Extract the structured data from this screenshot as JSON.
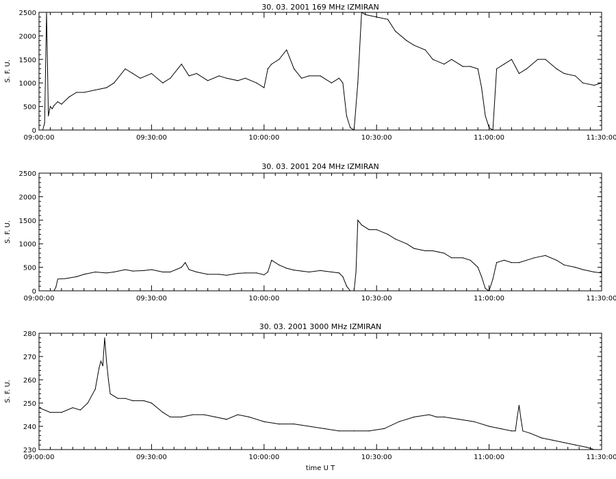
{
  "chart_data": [
    {
      "type": "line",
      "title": "30.  03.  2001    169 MHz    IZMIRAN",
      "ylabel": "S. F. U.",
      "xlabel": "",
      "xlim": [
        "09:00:00",
        "11:30:00"
      ],
      "ylim": [
        0,
        2500
      ],
      "grid": false,
      "x_ticks": [
        "09:00:00",
        "09:30:00",
        "10:00:00",
        "10:30:00",
        "11:00:00",
        "11:30:00"
      ],
      "y_ticks": [
        "0",
        "500",
        "1000",
        "1500",
        "2000",
        "2500"
      ],
      "series": [
        {
          "x": [
            "09:00:00",
            "09:01:00",
            "09:01:30",
            "09:02:00",
            "09:02:30",
            "09:03:00",
            "09:03:30",
            "09:04:00",
            "09:05:00",
            "09:06:00",
            "09:08:00",
            "09:10:00",
            "09:12:00",
            "09:15:00",
            "09:18:00",
            "09:20:00",
            "09:23:00",
            "09:25:00",
            "09:27:00",
            "09:30:00",
            "09:33:00",
            "09:35:00",
            "09:38:00",
            "09:40:00",
            "09:42:00",
            "09:45:00",
            "09:48:00",
            "09:50:00",
            "09:53:00",
            "09:55:00",
            "09:58:00",
            "10:00:00",
            "10:01:00",
            "10:02:00",
            "10:04:00",
            "10:06:00",
            "10:08:00",
            "10:10:00",
            "10:12:00",
            "10:15:00",
            "10:18:00",
            "10:20:00",
            "10:21:00",
            "10:22:00",
            "10:23:00",
            "10:24:00",
            "10:25:00",
            "10:26:00",
            "10:27:00",
            "10:30:00",
            "10:33:00",
            "10:35:00",
            "10:38:00",
            "10:40:00",
            "10:43:00",
            "10:45:00",
            "10:48:00",
            "10:50:00",
            "10:53:00",
            "10:55:00",
            "10:57:00",
            "10:58:00",
            "10:59:00",
            "11:00:00",
            "11:01:00",
            "11:02:00",
            "11:04:00",
            "11:06:00",
            "11:08:00",
            "11:10:00",
            "11:13:00",
            "11:15:00",
            "11:18:00",
            "11:20:00",
            "11:23:00",
            "11:25:00",
            "11:28:00",
            "11:30:00"
          ],
          "values": [
            0,
            0,
            150,
            2500,
            300,
            500,
            450,
            520,
            600,
            550,
            700,
            800,
            800,
            850,
            900,
            1000,
            1300,
            1200,
            1100,
            1200,
            1000,
            1100,
            1400,
            1150,
            1200,
            1050,
            1150,
            1100,
            1050,
            1100,
            1000,
            900,
            1300,
            1400,
            1500,
            1700,
            1300,
            1100,
            1150,
            1150,
            1000,
            1100,
            1000,
            300,
            50,
            0,
            1000,
            2500,
            2450,
            2400,
            2350,
            2100,
            1900,
            1800,
            1700,
            1500,
            1400,
            1500,
            1350,
            1350,
            1300,
            900,
            300,
            50,
            0,
            1300,
            1400,
            1500,
            1200,
            1300,
            1500,
            1500,
            1300,
            1200,
            1150,
            1000,
            950,
            1000
          ]
        }
      ]
    },
    {
      "type": "line",
      "title": "30.  03.  2001    204 MHz    IZMIRAN",
      "ylabel": "S. F. U.",
      "xlabel": "",
      "xlim": [
        "09:00:00",
        "11:30:00"
      ],
      "ylim": [
        0,
        2500
      ],
      "grid": false,
      "x_ticks": [
        "09:00:00",
        "09:30:00",
        "10:00:00",
        "10:30:00",
        "11:00:00",
        "11:30:00"
      ],
      "y_ticks": [
        "0",
        "500",
        "1000",
        "1500",
        "2000",
        "2500"
      ],
      "series": [
        {
          "x": [
            "09:00:00",
            "09:02:00",
            "09:04:00",
            "09:04:30",
            "09:05:00",
            "09:07:00",
            "09:10:00",
            "09:12:00",
            "09:15:00",
            "09:18:00",
            "09:20:00",
            "09:23:00",
            "09:25:00",
            "09:28:00",
            "09:30:00",
            "09:33:00",
            "09:35:00",
            "09:38:00",
            "09:39:00",
            "09:40:00",
            "09:42:00",
            "09:45:00",
            "09:48:00",
            "09:50:00",
            "09:53:00",
            "09:55:00",
            "09:58:00",
            "10:00:00",
            "10:01:00",
            "10:02:00",
            "10:04:00",
            "10:06:00",
            "10:08:00",
            "10:10:00",
            "10:12:00",
            "10:15:00",
            "10:18:00",
            "10:20:00",
            "10:21:00",
            "10:22:00",
            "10:23:00",
            "10:24:00",
            "10:24:30",
            "10:25:00",
            "10:26:00",
            "10:28:00",
            "10:30:00",
            "10:33:00",
            "10:35:00",
            "10:38:00",
            "10:40:00",
            "10:43:00",
            "10:45:00",
            "10:48:00",
            "10:50:00",
            "10:53:00",
            "10:55:00",
            "10:57:00",
            "10:58:00",
            "10:59:00",
            "11:00:00",
            "11:01:00",
            "11:02:00",
            "11:04:00",
            "11:06:00",
            "11:08:00",
            "11:10:00",
            "11:12:00",
            "11:15:00",
            "11:18:00",
            "11:20:00",
            "11:23:00",
            "11:25:00",
            "11:28:00",
            "11:30:00"
          ],
          "values": [
            0,
            0,
            0,
            80,
            250,
            260,
            300,
            350,
            400,
            380,
            400,
            450,
            420,
            430,
            450,
            400,
            400,
            500,
            600,
            450,
            400,
            350,
            350,
            330,
            370,
            380,
            380,
            340,
            400,
            650,
            550,
            480,
            440,
            420,
            400,
            430,
            400,
            380,
            300,
            100,
            0,
            0,
            400,
            1500,
            1400,
            1300,
            1300,
            1200,
            1100,
            1000,
            900,
            850,
            850,
            800,
            700,
            700,
            650,
            500,
            300,
            50,
            0,
            250,
            600,
            650,
            600,
            600,
            650,
            700,
            750,
            650,
            550,
            500,
            450,
            400,
            380
          ]
        }
      ]
    },
    {
      "type": "line",
      "title": "30.  03.  2001    3000 MHz    IZMIRAN",
      "ylabel": "S. F. U.",
      "xlabel": "time  U T",
      "xlim": [
        "09:00:00",
        "11:30:00"
      ],
      "ylim": [
        230,
        280
      ],
      "grid": false,
      "x_ticks": [
        "09:00:00",
        "09:30:00",
        "10:00:00",
        "10:30:00",
        "11:00:00",
        "11:30:00"
      ],
      "y_ticks": [
        "230",
        "240",
        "250",
        "260",
        "270",
        "280"
      ],
      "series": [
        {
          "x": [
            "09:00:00",
            "09:03:00",
            "09:06:00",
            "09:09:00",
            "09:11:00",
            "09:13:00",
            "09:15:00",
            "09:16:00",
            "09:16:30",
            "09:17:00",
            "09:17:30",
            "09:18:00",
            "09:18:30",
            "09:19:00",
            "09:20:00",
            "09:21:00",
            "09:23:00",
            "09:25:00",
            "09:28:00",
            "09:30:00",
            "09:33:00",
            "09:35:00",
            "09:38:00",
            "09:41:00",
            "09:44:00",
            "09:47:00",
            "09:50:00",
            "09:53:00",
            "09:56:00",
            "10:00:00",
            "10:04:00",
            "10:08:00",
            "10:12:00",
            "10:16:00",
            "10:20:00",
            "10:24:00",
            "10:28:00",
            "10:32:00",
            "10:36:00",
            "10:40:00",
            "10:44:00",
            "10:46:00",
            "10:48:00",
            "10:52:00",
            "10:56:00",
            "11:00:00",
            "11:03:00",
            "11:06:00",
            "11:07:00",
            "11:07:30",
            "11:08:00",
            "11:08:30",
            "11:09:00",
            "11:11:00",
            "11:14:00",
            "11:17:00",
            "11:20:00",
            "11:23:00",
            "11:26:00",
            "11:28:00",
            "11:30:00"
          ],
          "values": [
            248,
            246,
            246,
            248,
            247,
            250,
            256,
            265,
            268,
            266,
            278,
            268,
            260,
            254,
            253,
            252,
            252,
            251,
            251,
            250,
            246,
            244,
            244,
            245,
            245,
            244,
            243,
            245,
            244,
            242,
            241,
            241,
            240,
            239,
            238,
            238,
            238,
            239,
            242,
            244,
            245,
            244,
            244,
            243,
            242,
            240,
            239,
            238,
            238,
            244,
            249,
            243,
            238,
            237,
            235,
            234,
            233,
            232,
            231,
            230,
            230
          ]
        }
      ]
    }
  ]
}
